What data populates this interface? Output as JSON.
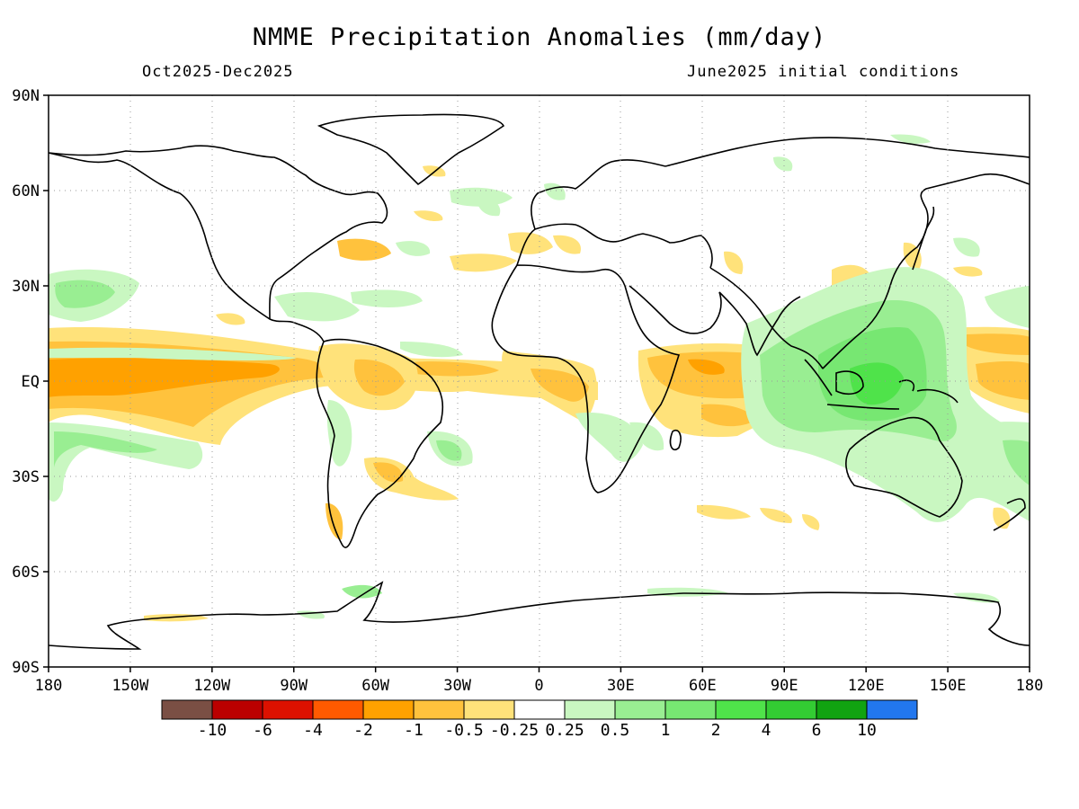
{
  "header": {
    "title": "NMME Precipitation Anomalies (mm/day)",
    "period": "Oct2025-Dec2025",
    "init": "June2025 initial conditions"
  },
  "axes": {
    "x_labels": [
      "180",
      "150W",
      "120W",
      "90W",
      "60W",
      "30W",
      "0",
      "30E",
      "60E",
      "90E",
      "120E",
      "150E",
      "180"
    ],
    "y_labels": [
      "90N",
      "60N",
      "30N",
      "EQ",
      "30S",
      "60S",
      "90S"
    ]
  },
  "colorbar": {
    "colors": [
      "#7a4f44",
      "#bb0000",
      "#dd1100",
      "#ff5a00",
      "#ffa100",
      "#ffc23d",
      "#ffe27a",
      "#ffffff",
      "#c9f7c1",
      "#99ee92",
      "#77e772",
      "#4fe34a",
      "#33cc33",
      "#11a311",
      "#2277ee"
    ],
    "labels": [
      "-10",
      "-6",
      "-4",
      "-2",
      "-1",
      "-0.5",
      "-0.25",
      "0.25",
      "0.5",
      "1",
      "2",
      "4",
      "6",
      "10"
    ]
  },
  "fill_colors": {
    "dry_light": "#ffe27a",
    "dry_mid": "#ffc23d",
    "dry_strong": "#ffa100",
    "wet_light": "#c9f7c1",
    "wet_mid": "#99ee92",
    "wet_strong": "#77e772",
    "wet_max": "#4fe34a"
  }
}
